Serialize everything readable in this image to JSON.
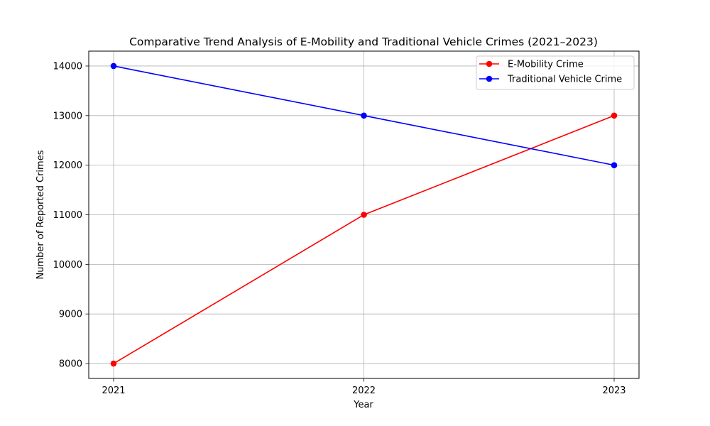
{
  "chart_data": {
    "type": "line",
    "title": "Comparative Trend Analysis of E-Mobility and Traditional Vehicle Crimes (2021–2023)",
    "xlabel": "Year",
    "ylabel": "Number of Reported Crimes",
    "categories": [
      "2021",
      "2022",
      "2023"
    ],
    "ylim": [
      7700,
      14300
    ],
    "y_ticks": [
      8000,
      9000,
      10000,
      11000,
      12000,
      13000,
      14000
    ],
    "grid": true,
    "legend_position": "top-right",
    "series": [
      {
        "name": "E-Mobility Crime",
        "values": [
          8000,
          11000,
          13000
        ],
        "color": "#ff0000",
        "marker": "circle"
      },
      {
        "name": "Traditional Vehicle Crime",
        "values": [
          14000,
          13000,
          12000
        ],
        "color": "#0000ff",
        "marker": "circle"
      }
    ]
  }
}
